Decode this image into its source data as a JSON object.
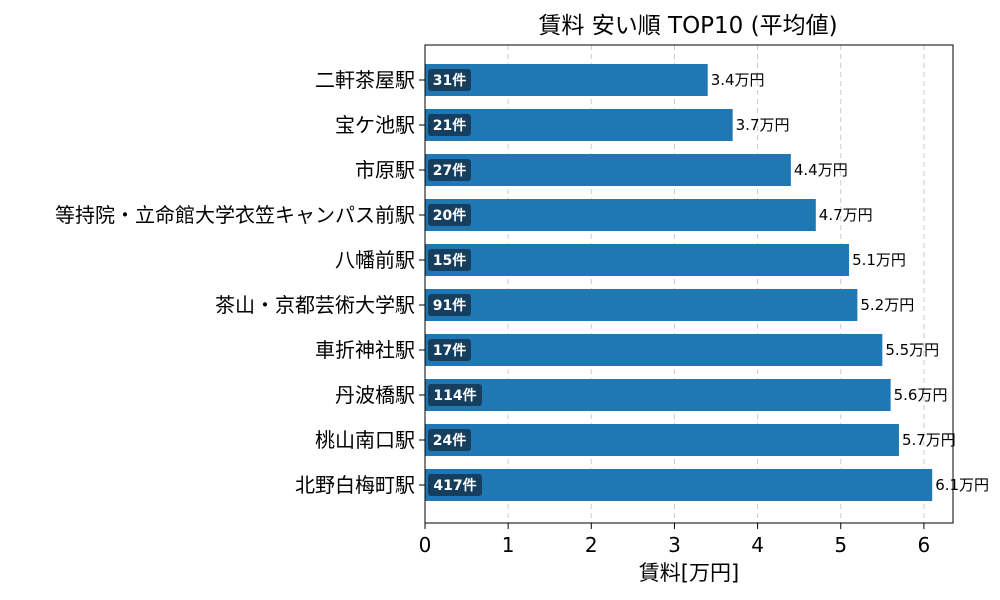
{
  "chart_data": {
    "type": "bar",
    "orientation": "horizontal",
    "title": "賃料 安い順 TOP10 (平均値)",
    "xlabel": "賃料[万円]",
    "ylabel": "",
    "xlim": [
      0,
      6.35
    ],
    "xticks": [
      0,
      1,
      2,
      3,
      4,
      5,
      6
    ],
    "grid": "vertical dashed",
    "value_suffix": "万円",
    "count_suffix": "件",
    "bar_color": "#1f77b4",
    "badge_color": "#163f5f",
    "grid_color": "#cccccc",
    "categories": [
      "二軒茶屋駅",
      "宝ケ池駅",
      "市原駅",
      "等持院・立命館大学衣笠キャンパス前駅",
      "八幡前駅",
      "茶山・京都芸術大学駅",
      "車折神社駅",
      "丹波橋駅",
      "桃山南口駅",
      "北野白梅町駅"
    ],
    "values": [
      3.4,
      3.7,
      4.4,
      4.7,
      5.1,
      5.2,
      5.5,
      5.6,
      5.7,
      6.1
    ],
    "value_labels": [
      "3.4万円",
      "3.7万円",
      "4.4万円",
      "4.7万円",
      "5.1万円",
      "5.2万円",
      "5.5万円",
      "5.6万円",
      "5.7万円",
      "6.1万円"
    ],
    "counts": [
      31,
      21,
      27,
      20,
      15,
      91,
      17,
      114,
      24,
      417
    ],
    "count_labels": [
      "31件",
      "21件",
      "27件",
      "20件",
      "15件",
      "91件",
      "17件",
      "114件",
      "24件",
      "417件"
    ]
  }
}
